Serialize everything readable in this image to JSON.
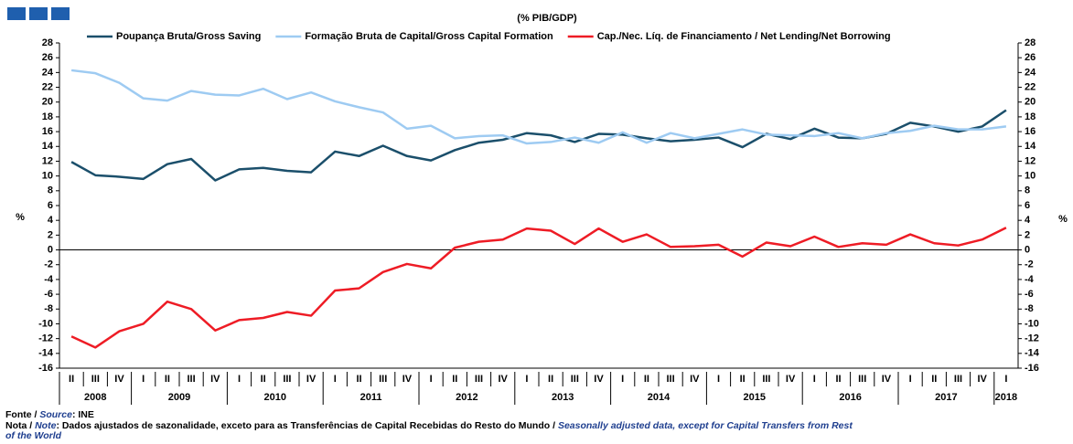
{
  "chart_data": {
    "type": "line",
    "title": "(% PIB/GDP)",
    "y_label": "%",
    "categories": [
      "II",
      "III",
      "IV",
      "I",
      "II",
      "III",
      "IV",
      "I",
      "II",
      "III",
      "IV",
      "I",
      "II",
      "III",
      "IV",
      "I",
      "II",
      "III",
      "IV",
      "I",
      "II",
      "III",
      "IV",
      "I",
      "II",
      "III",
      "IV",
      "I",
      "II",
      "III",
      "IV",
      "I",
      "II",
      "III",
      "IV",
      "I",
      "II",
      "III",
      "IV",
      "I"
    ],
    "years": [
      "2008",
      "2009",
      "2010",
      "2011",
      "2012",
      "2013",
      "2014",
      "2015",
      "2016",
      "2017",
      "2018"
    ],
    "series": [
      {
        "name": "Poupança Bruta/Gross Saving",
        "color": "#1b4f6b",
        "values": [
          11.9,
          10.1,
          9.9,
          9.6,
          11.6,
          12.3,
          9.4,
          10.9,
          11.1,
          10.7,
          10.5,
          13.3,
          12.7,
          14.1,
          12.7,
          12.1,
          13.5,
          14.5,
          14.9,
          15.8,
          15.5,
          14.6,
          15.7,
          15.6,
          15.1,
          14.7,
          14.9,
          15.2,
          13.9,
          15.7,
          15.0,
          16.4,
          15.2,
          15.1,
          15.7,
          17.2,
          16.7,
          16.0,
          16.7,
          18.9
        ]
      },
      {
        "name": "Formação Bruta de Capital/Gross Capital Formation",
        "color": "#9ecbf2",
        "values": [
          24.3,
          23.9,
          22.6,
          20.5,
          20.2,
          21.5,
          21.0,
          20.9,
          21.8,
          20.4,
          21.3,
          20.1,
          19.3,
          18.6,
          16.4,
          16.8,
          15.1,
          15.4,
          15.5,
          14.4,
          14.6,
          15.2,
          14.5,
          15.9,
          14.5,
          15.8,
          15.1,
          15.7,
          16.3,
          15.6,
          15.5,
          15.4,
          15.8,
          15.1,
          15.8,
          16.1,
          16.8,
          16.3,
          16.3,
          16.7
        ]
      },
      {
        "name": "Cap./Nec. Líq. de Financiamento / Net Lending/Net Borrowing",
        "color": "#ee1c25",
        "values": [
          -11.7,
          -13.2,
          -11.0,
          -10.0,
          -7.0,
          -8.0,
          -10.9,
          -9.5,
          -9.2,
          -8.4,
          -8.9,
          -5.5,
          -5.2,
          -3.0,
          -1.9,
          -2.5,
          0.3,
          1.1,
          1.4,
          2.9,
          2.6,
          0.8,
          2.9,
          1.1,
          2.1,
          0.4,
          0.5,
          0.7,
          -0.9,
          1.0,
          0.5,
          1.8,
          0.4,
          0.9,
          0.7,
          2.1,
          0.9,
          0.6,
          1.4,
          3.0
        ]
      }
    ],
    "ylim": [
      -16,
      28
    ],
    "yticks": [
      -16,
      -14,
      -12,
      -10,
      -8,
      -6,
      -4,
      -2,
      0,
      2,
      4,
      6,
      8,
      10,
      12,
      14,
      16,
      18,
      20,
      22,
      24,
      26,
      28
    ],
    "source_pt": "Fonte / ",
    "source_en": "Source",
    "source": ":  INE",
    "note_pt": "Nota / ",
    "note_en_label": "Note",
    "note_text": ": Dados ajustados de sazonalidade, exceto para as Transferências de Capital Recebidas do Resto do Mundo / ",
    "note_en_1": "Seasonally adjusted data, except for Capital Transfers from Rest",
    "note_en_2": "of the World"
  }
}
